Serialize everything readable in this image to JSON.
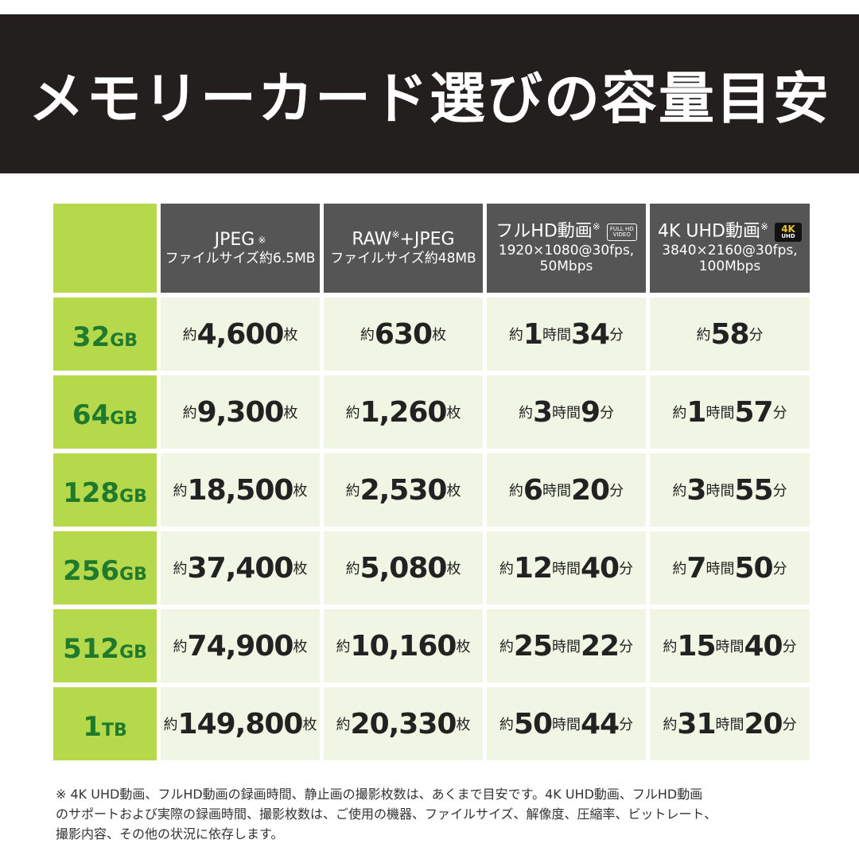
{
  "title": "メモリーカード選びの容量目安",
  "headers": [
    {
      "main": "JPEG",
      "mark": "※",
      "main2": "",
      "sub": "ファイルサイズ約6.5MB",
      "sub2": ""
    },
    {
      "main": "RAW",
      "mark": "※",
      "main2": "+JPEG",
      "sub": "ファイルサイズ約48MB",
      "sub2": ""
    },
    {
      "main": "フルHD動画",
      "mark": "※",
      "main2": "",
      "sub": "1920×1080@30fps,",
      "sub2": "50Mbps",
      "badge_top": "FULL HD",
      "badge_bottom": "VIDEO"
    },
    {
      "main": "4K UHD動画",
      "mark": "※",
      "main2": "",
      "sub": "3840×2160@30fps,",
      "sub2": "100Mbps",
      "badge_top": "4K",
      "badge_bottom": "UHD"
    }
  ],
  "rows": [
    {
      "capacity": "32",
      "unit": "GB",
      "jpeg": "4,600",
      "raw": "630",
      "fhd_h": "1",
      "fhd_m": "34",
      "uhd_h": "",
      "uhd_m": "58"
    },
    {
      "capacity": "64",
      "unit": "GB",
      "jpeg": "9,300",
      "raw": "1,260",
      "fhd_h": "3",
      "fhd_m": "9",
      "uhd_h": "1",
      "uhd_m": "57"
    },
    {
      "capacity": "128",
      "unit": "GB",
      "jpeg": "18,500",
      "raw": "2,530",
      "fhd_h": "6",
      "fhd_m": "20",
      "uhd_h": "3",
      "uhd_m": "55"
    },
    {
      "capacity": "256",
      "unit": "GB",
      "jpeg": "37,400",
      "raw": "5,080",
      "fhd_h": "12",
      "fhd_m": "40",
      "uhd_h": "7",
      "uhd_m": "50"
    },
    {
      "capacity": "512",
      "unit": "GB",
      "jpeg": "74,900",
      "raw": "10,160",
      "fhd_h": "25",
      "fhd_m": "22",
      "uhd_h": "15",
      "uhd_m": "40"
    },
    {
      "capacity": "1",
      "unit": "TB",
      "jpeg": "149,800",
      "raw": "20,330",
      "fhd_h": "50",
      "fhd_m": "44",
      "uhd_h": "31",
      "uhd_m": "20"
    }
  ],
  "labels": {
    "approx": "約",
    "sheets": "枚",
    "hours": "時間",
    "minutes": "分"
  },
  "footnote": [
    "※ 4K UHD動画、フルHD動画の録画時間、静止画の撮影枚数は、あくまで目安です。4K UHD動画、フルHD動画",
    "のサポートおよび実際の録画時間、撮影枚数は、ご使用の機器、ファイルサイズ、解像度、圧縮率、ビットレート、",
    "撮影内容、その他の状況に依存します。"
  ],
  "colors": {
    "title_bg": "#231f1e",
    "header_bg": "#555555",
    "capacity_bg": "#b6d94c",
    "capacity_text": "#1f7a2d",
    "cell_bg": "#f1f5e3"
  }
}
